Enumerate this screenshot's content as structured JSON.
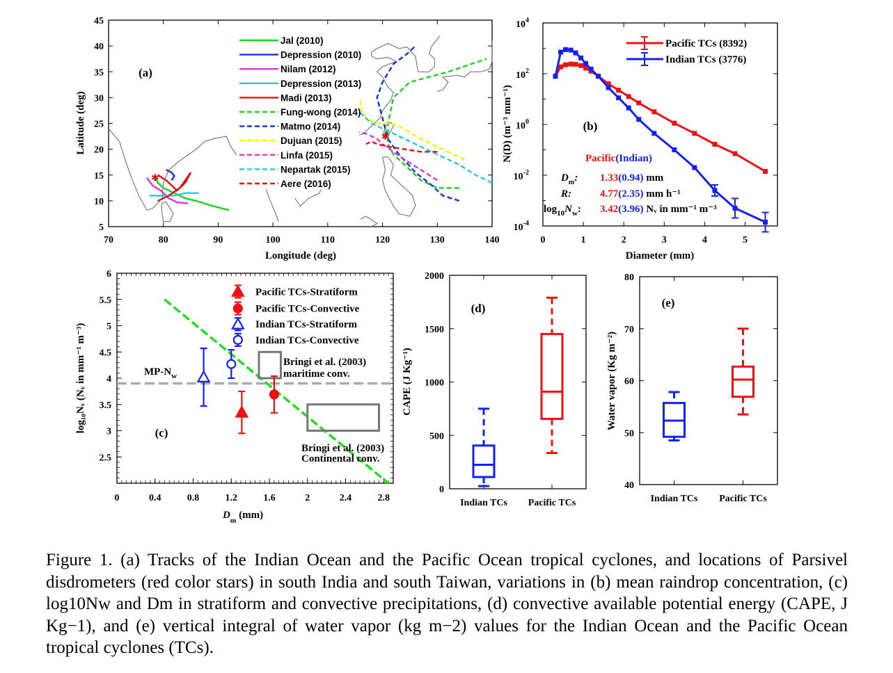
{
  "chart_data": [
    {
      "id": "a",
      "type": "line",
      "panel_label": "(a)",
      "xlabel": "Longitude (deg)",
      "ylabel": "Latitude (deg)",
      "xlim": [
        70,
        140
      ],
      "ylim": [
        5,
        45
      ],
      "xticks": [
        "70",
        "80",
        "90",
        "100",
        "110",
        "120",
        "130",
        "140"
      ],
      "yticks": [
        "5",
        "10",
        "15",
        "20",
        "25",
        "30",
        "35",
        "40",
        "45"
      ],
      "legend_position": "upper-center",
      "series": [
        {
          "name": "Jal (2010)",
          "color": "#22cc22",
          "dash": "solid",
          "points": [
            [
              92,
              8.2
            ],
            [
              89,
              9
            ],
            [
              86,
              10
            ],
            [
              84,
              10.5
            ],
            [
              82,
              11.5
            ],
            [
              80,
              12.5
            ],
            [
              79,
              13.5
            ],
            [
              78.5,
              14.5
            ]
          ]
        },
        {
          "name": "Depression (2010)",
          "color": "#1133cc",
          "dash": "solid",
          "points": [
            [
              80.5,
              16
            ],
            [
              81.5,
              15.5
            ],
            [
              82,
              14.8
            ],
            [
              81.5,
              14
            ]
          ]
        },
        {
          "name": "Nilam (2012)",
          "color": "#dd33dd",
          "dash": "solid",
          "points": [
            [
              84.5,
              9.5
            ],
            [
              82.5,
              9.7
            ],
            [
              81,
              10.5
            ],
            [
              79.5,
              12
            ],
            [
              78,
              13
            ],
            [
              77,
              14.5
            ]
          ]
        },
        {
          "name": "Depression (2013)",
          "color": "#22cccc",
          "dash": "solid",
          "points": [
            [
              86.5,
              11.5
            ],
            [
              84,
              11.5
            ],
            [
              82,
              11
            ],
            [
              80.5,
              11
            ],
            [
              79,
              11
            ],
            [
              77.5,
              11
            ]
          ]
        },
        {
          "name": "Madi (2013)",
          "color": "#dd1111",
          "dash": "solid",
          "points": [
            [
              79,
              10
            ],
            [
              81,
              11
            ],
            [
              83,
              12.5
            ],
            [
              84,
              14
            ],
            [
              85,
              15.5
            ],
            [
              84,
              13.5
            ],
            [
              82.5,
              12
            ],
            [
              80.5,
              14
            ],
            [
              79,
              15
            ]
          ]
        },
        {
          "name": "Fung-wong (2014)",
          "color": "#22cc22",
          "dash": "dash",
          "points": [
            [
              134,
              12.5
            ],
            [
              130,
              12.5
            ],
            [
              127,
              14
            ],
            [
              124,
              17
            ],
            [
              122,
              19
            ],
            [
              121,
              21
            ],
            [
              121,
              25
            ],
            [
              122,
              30
            ],
            [
              125,
              33
            ],
            [
              132,
              35
            ],
            [
              139,
              37.5
            ]
          ]
        },
        {
          "name": "Matmo (2014)",
          "color": "#1133cc",
          "dash": "dash",
          "points": [
            [
              134,
              10
            ],
            [
              131,
              11
            ],
            [
              129,
              13
            ],
            [
              126,
              15.5
            ],
            [
              123,
              19
            ],
            [
              121,
              22
            ],
            [
              120,
              26
            ],
            [
              119,
              30
            ],
            [
              120,
              33
            ],
            [
              122,
              36.5
            ],
            [
              124.5,
              38.5
            ],
            [
              126,
              40
            ]
          ]
        },
        {
          "name": "Dujuan (2015)",
          "color": "#ffee00",
          "dash": "dash",
          "points": [
            [
              135,
              18
            ],
            [
              131,
              20
            ],
            [
              127,
              22
            ],
            [
              123,
              24.5
            ],
            [
              121,
              25
            ],
            [
              119,
              25
            ],
            [
              117,
              26
            ],
            [
              116,
              28
            ],
            [
              116,
              30
            ]
          ]
        },
        {
          "name": "Linfa (2015)",
          "color": "#dd33dd",
          "dash": "dash",
          "points": [
            [
              130,
              14
            ],
            [
              127,
              16
            ],
            [
              124,
              18
            ],
            [
              122,
              19.5
            ],
            [
              120,
              21
            ],
            [
              119,
              22
            ],
            [
              117,
              23
            ],
            [
              115,
              23.5
            ]
          ]
        },
        {
          "name": "Nepartak (2015)",
          "color": "#22cccc",
          "dash": "dash",
          "points": [
            [
              140,
              13.5
            ],
            [
              137,
              15
            ],
            [
              134,
              17
            ],
            [
              130,
              19
            ],
            [
              126,
              21
            ],
            [
              122,
              23
            ],
            [
              120,
              24
            ],
            [
              118,
              25
            ],
            [
              116,
              27
            ],
            [
              115,
              27.5
            ]
          ]
        },
        {
          "name": "Aere (2016)",
          "color": "#dd1111",
          "dash": "dash",
          "points": [
            [
              130,
              19.5
            ],
            [
              127,
              19.5
            ],
            [
              124,
              20
            ],
            [
              121,
              20.5
            ],
            [
              119,
              21
            ],
            [
              118,
              21.5
            ],
            [
              117,
              21
            ]
          ]
        }
      ],
      "stars": [
        [
          78.5,
          14.5
        ],
        [
          120.5,
          22.5
        ]
      ]
    },
    {
      "id": "b",
      "type": "line",
      "panel_label": "(b)",
      "xlabel": "Diameter (mm)",
      "ylabel": "N(D) (m⁻³ mm⁻¹)",
      "xlim": [
        0,
        5.8
      ],
      "ylim_log10": [
        -4,
        4
      ],
      "xticks": [
        "0",
        "1",
        "2",
        "3",
        "4",
        "5"
      ],
      "ytick_exponents": [
        "4",
        "2",
        "0",
        "-2",
        "-4"
      ],
      "legend_position": "top-right",
      "series": [
        {
          "name": "Pacific TCs (8392)",
          "color": "#ee1111",
          "x": [
            0.31,
            0.44,
            0.56,
            0.69,
            0.81,
            0.94,
            1.06,
            1.19,
            1.37,
            1.62,
            1.87,
            2.12,
            2.37,
            2.75,
            3.25,
            3.75,
            4.25,
            4.75,
            5.5
          ],
          "log10y": [
            1.9,
            2.27,
            2.35,
            2.38,
            2.37,
            2.32,
            2.22,
            2.1,
            1.9,
            1.6,
            1.35,
            1.1,
            0.85,
            0.5,
            0.05,
            -0.35,
            -0.78,
            -1.15,
            -1.85
          ]
        },
        {
          "name": "Indian TCs (3776)",
          "color": "#1122ee",
          "x": [
            0.31,
            0.44,
            0.56,
            0.69,
            0.81,
            0.94,
            1.06,
            1.19,
            1.37,
            1.62,
            1.87,
            2.12,
            2.37,
            2.75,
            3.25,
            3.75,
            4.25,
            4.75,
            5.5
          ],
          "log10y": [
            1.9,
            2.85,
            2.95,
            2.93,
            2.82,
            2.62,
            2.4,
            2.18,
            1.9,
            1.45,
            1.05,
            0.65,
            0.2,
            -0.35,
            -1.0,
            -1.7,
            -2.6,
            -3.3,
            -3.85
          ]
        }
      ],
      "stats_header": {
        "pacific": "Pacific",
        "indian": "(Indian)"
      },
      "stats": [
        {
          "label": "D",
          "sub": "m",
          "colon": ":",
          "pacific": "1.33",
          "indian": "(0.94)",
          "unit": "mm"
        },
        {
          "label": "R",
          "sub": "",
          "colon": ":",
          "pacific": "4.77",
          "indian": "(2.35)",
          "unit": "mm h⁻¹"
        },
        {
          "label": "log",
          "sub": "10",
          "label2": "N",
          "sub2": "w",
          "colon": ":",
          "pacific": "3.42",
          "indian": "(3.96)",
          "unit": "Nᵥ in mm⁻¹ m⁻³"
        }
      ]
    },
    {
      "id": "c",
      "type": "scatter",
      "panel_label": "(c)",
      "xlabel": "D",
      "xlabel_sub": "m",
      "xlabel_unit": "(mm)",
      "ylabel": "log₁₀Nᵥ (Nᵥ in mm⁻¹ m⁻³)",
      "xlim": [
        0,
        2.9
      ],
      "ylim": [
        2,
        6
      ],
      "xticks": [
        "0",
        "0.4",
        "0.8",
        "1.2",
        "1.6",
        "2",
        "2.4",
        "2.8"
      ],
      "yticks": [
        "6",
        "5.5",
        "5",
        "4.5",
        "4",
        "3.5",
        "3",
        "2.5"
      ],
      "legend_position": "top-right",
      "series": [
        {
          "name": "Pacific TCs-Stratiform",
          "color": "#ee1111",
          "marker": "filled-triangle",
          "legend_x": 1.27,
          "legend_y": 5.65
        },
        {
          "name": "Pacific TCs-Convective",
          "color": "#ee1111",
          "marker": "filled-circle",
          "legend_x": 1.27,
          "legend_y": 5.33
        },
        {
          "name": "Indian TCs-Stratiform",
          "color": "#1122ee",
          "marker": "open-triangle",
          "legend_x": 1.27,
          "legend_y": 5.03
        },
        {
          "name": "Indian TCs-Convective",
          "color": "#1122ee",
          "marker": "open-circle",
          "legend_x": 1.27,
          "legend_y": 4.73
        }
      ],
      "points": [
        {
          "x": 1.31,
          "y": 3.35,
          "err": 0.4,
          "color": "#ee1111",
          "marker": "filled-triangle"
        },
        {
          "x": 1.65,
          "y": 3.69,
          "err": 0.35,
          "color": "#ee1111",
          "marker": "filled-circle"
        },
        {
          "x": 0.91,
          "y": 4.02,
          "err": 0.55,
          "color": "#1122ee",
          "marker": "open-triangle"
        },
        {
          "x": 1.2,
          "y": 4.27,
          "err": 0.27,
          "color": "#1122ee",
          "marker": "open-circle"
        }
      ],
      "mp_line": {
        "label": "MP-N",
        "label_sub": "w",
        "y": 3.9
      },
      "fit_line": {
        "x1": 0.5,
        "y1": 5.5,
        "x2": 2.85,
        "y2": 2.0,
        "color": "#22dd22"
      },
      "boxes": [
        {
          "x1": 1.49,
          "x2": 1.72,
          "y1": 4.0,
          "y2": 4.5,
          "label": "Bringi et al. (2003)",
          "label2": "maritime conv."
        },
        {
          "x1": 2.0,
          "x2": 2.75,
          "y1": 3.0,
          "y2": 3.5,
          "label": "Bringi et al. (2003)",
          "label2": "Continental conv."
        }
      ]
    },
    {
      "id": "d",
      "type": "box",
      "panel_label": "(d)",
      "ylabel": "CAPE (J Kg⁻¹)",
      "ylim": [
        0,
        2000
      ],
      "yticks": [
        "2000",
        "1500",
        "1000",
        "500",
        "0"
      ],
      "categories": [
        "Indian TCs",
        "Pacific TCs"
      ],
      "boxes": [
        {
          "color": "#1122ee",
          "min": 25,
          "q1": 110,
          "median": 225,
          "q3": 405,
          "max": 750
        },
        {
          "color": "#ee1111",
          "min": 335,
          "q1": 655,
          "median": 910,
          "q3": 1450,
          "max": 1790
        }
      ]
    },
    {
      "id": "e",
      "type": "box",
      "panel_label": "(e)",
      "ylabel": "Water vapor (Kg m⁻²)",
      "ylim": [
        40,
        80
      ],
      "yticks": [
        "80",
        "70",
        "60",
        "50",
        "40"
      ],
      "categories": [
        "Indian TCs",
        "Pacific TCs"
      ],
      "boxes": [
        {
          "color": "#1122ee",
          "min": 48.5,
          "q1": 49.2,
          "median": 52.3,
          "q3": 55.7,
          "max": 57.8
        },
        {
          "color": "#ee1111",
          "min": 53.5,
          "q1": 56.9,
          "median": 60.2,
          "q3": 62.7,
          "max": 70
        }
      ]
    }
  ],
  "caption": "Figure 1. (a) Tracks of the Indian Ocean and the Pacific Ocean tropical cyclones, and locations of Parsivel disdrometers (red color stars) in south India and south Taiwan, variations in (b) mean raindrop concentration, (c) log10Nw and Dm in stratiform and convective precipitations, (d) convective available potential energy (CAPE, J Kg−1), and (e) vertical integral of water vapor (kg m−2) values for the Indian Ocean and the Pacific Ocean tropical cyclones (TCs)."
}
